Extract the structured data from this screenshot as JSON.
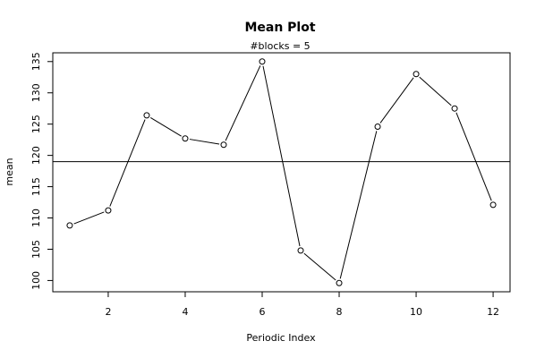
{
  "chart_data": {
    "type": "line",
    "title": "Mean Plot",
    "subtitle": "#blocks =  5",
    "xlabel": "Periodic Index",
    "ylabel": "mean",
    "x": [
      1,
      2,
      3,
      4,
      5,
      6,
      7,
      8,
      9,
      10,
      11,
      12
    ],
    "values": [
      108.8,
      111.2,
      126.4,
      122.7,
      121.7,
      135.0,
      104.8,
      99.6,
      124.6,
      133.0,
      127.5,
      112.1
    ],
    "reference_line": 119.0,
    "xlim": [
      0.56,
      12.44
    ],
    "ylim": [
      98.2,
      136.4
    ],
    "xticks": [
      2,
      4,
      6,
      8,
      10,
      12
    ],
    "yticks": [
      100,
      105,
      110,
      115,
      120,
      125,
      130,
      135
    ],
    "grid": false,
    "legend": "none",
    "colors": {
      "line": "#000000",
      "point": "#000000",
      "background": "#ffffff"
    }
  }
}
